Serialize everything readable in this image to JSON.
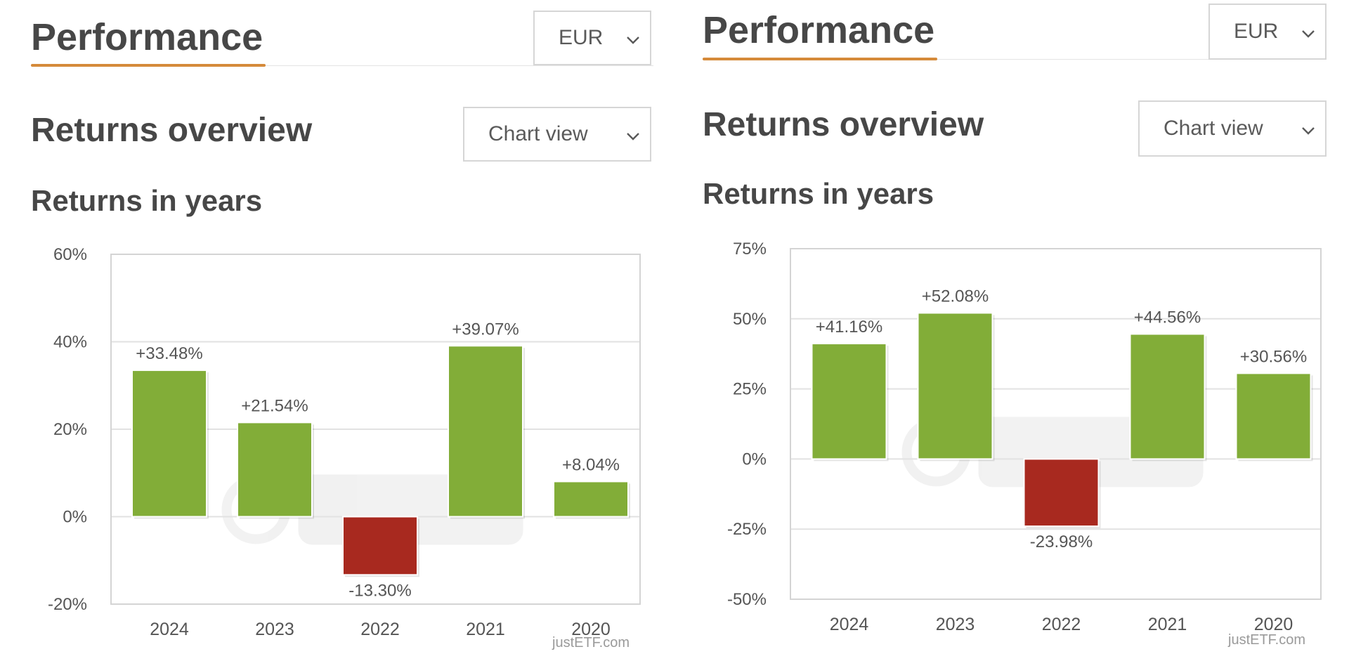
{
  "panels": [
    {
      "performance_title": "Performance",
      "currency_select": {
        "value": "EUR"
      },
      "returns_overview_title": "Returns overview",
      "view_select": {
        "value": "Chart view"
      },
      "returns_in_years_title": "Returns in years",
      "credit": "justETF.com"
    },
    {
      "performance_title": "Performance",
      "currency_select": {
        "value": "EUR"
      },
      "returns_overview_title": "Returns overview",
      "view_select": {
        "value": "Chart view"
      },
      "returns_in_years_title": "Returns in years",
      "credit": "justETF.com"
    }
  ],
  "colors": {
    "positive": "#82ad38",
    "negative": "#a8291f",
    "accent": "#d58a3a",
    "grid": "#e2e2e2"
  },
  "icons": {
    "select_chevron": "chevron-down-icon",
    "watermark": "justetf-watermark"
  },
  "chart_data": [
    {
      "type": "bar",
      "title": "Returns in years",
      "categories": [
        "2024",
        "2023",
        "2022",
        "2021",
        "2020"
      ],
      "values": [
        33.48,
        21.54,
        -13.3,
        39.07,
        8.04
      ],
      "data_labels": [
        "+33.48%",
        "+21.54%",
        "-13.30%",
        "+39.07%",
        "+8.04%"
      ],
      "ylim": [
        -20,
        60
      ],
      "yticks": [
        60,
        40,
        20,
        0,
        -20
      ],
      "ytick_labels": [
        "60%",
        "40%",
        "20%",
        "0%",
        "-20%"
      ],
      "grid": true,
      "legend": "none",
      "xlabel": "",
      "ylabel": ""
    },
    {
      "type": "bar",
      "title": "Returns in years",
      "categories": [
        "2024",
        "2023",
        "2022",
        "2021",
        "2020"
      ],
      "values": [
        41.16,
        52.08,
        -23.98,
        44.56,
        30.56
      ],
      "data_labels": [
        "+41.16%",
        "+52.08%",
        "-23.98%",
        "+44.56%",
        "+30.56%"
      ],
      "ylim": [
        -50,
        75
      ],
      "yticks": [
        75,
        50,
        25,
        0,
        -25,
        -50
      ],
      "ytick_labels": [
        "75%",
        "50%",
        "25%",
        "0%",
        "-25%",
        "-50%"
      ],
      "grid": true,
      "legend": "none",
      "xlabel": "",
      "ylabel": ""
    }
  ]
}
